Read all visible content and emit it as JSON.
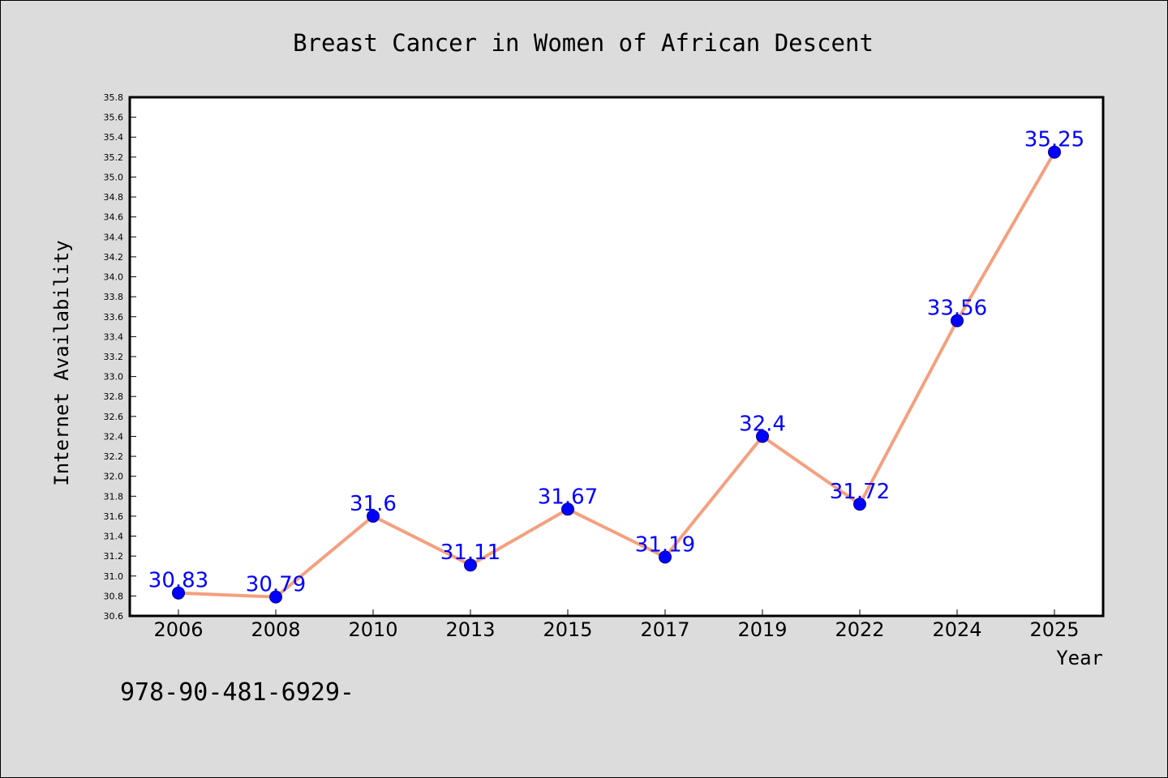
{
  "chart_data": {
    "type": "line",
    "title": "Breast Cancer in Women of African Descent",
    "xlabel": "Year",
    "ylabel": "Internet Availability",
    "categories": [
      "2006",
      "2008",
      "2010",
      "2013",
      "2015",
      "2017",
      "2019",
      "2022",
      "2024",
      "2025"
    ],
    "series": [
      {
        "values": [
          30.83,
          30.79,
          31.6,
          31.11,
          31.67,
          31.19,
          32.4,
          31.72,
          33.56,
          35.25
        ],
        "labels": [
          "30.83",
          "30.79",
          "31.6",
          "31.11",
          "31.67",
          "31.19",
          "32.4",
          "31.72",
          "33.56",
          "35.25"
        ]
      }
    ],
    "ylim": [
      30.6,
      35.8
    ],
    "y_ticks": [
      "30.6",
      "30.8",
      "31.0",
      "31.2",
      "31.4",
      "31.6",
      "31.8",
      "32.0",
      "32.2",
      "32.4",
      "32.6",
      "32.8",
      "33.0",
      "33.2",
      "33.4",
      "33.6",
      "33.8",
      "34.0",
      "34.2",
      "34.4",
      "34.6",
      "34.8",
      "35.0",
      "35.2",
      "35.4",
      "35.6",
      "35.8"
    ],
    "grid": false,
    "colors": {
      "line": "#f4a07f",
      "marker": "#0000ff",
      "marker_edge": "#00008b",
      "data_label": "#0000ff",
      "background": "#dcdcdc",
      "plot_background": "#ffffff"
    }
  },
  "footnote": "978-90-481-6929-"
}
